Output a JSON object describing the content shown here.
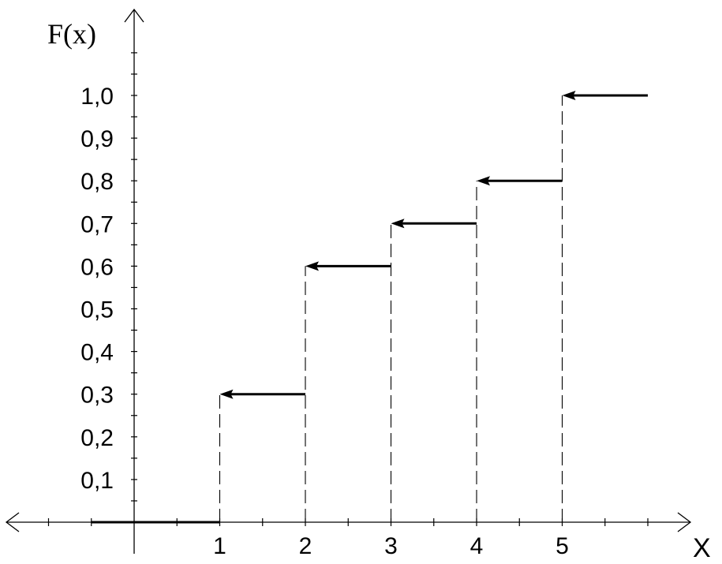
{
  "chart_data": {
    "type": "line",
    "title": "",
    "xlabel": "X",
    "ylabel": "F(x)",
    "xlim": [
      -1.5,
      6.5
    ],
    "ylim": [
      0,
      1.1
    ],
    "x_ticks": [
      1,
      2,
      3,
      4,
      5
    ],
    "x_tick_labels": [
      "1",
      "2",
      "3",
      "4",
      "5"
    ],
    "y_ticks": [
      0.1,
      0.2,
      0.3,
      0.4,
      0.5,
      0.6,
      0.7,
      0.8,
      0.9,
      1.0
    ],
    "y_tick_labels": [
      "0,1",
      "0,2",
      "0,3",
      "0,4",
      "0,5",
      "0,6",
      "0,7",
      "0,8",
      "0,9",
      "1,0"
    ],
    "steps": [
      {
        "x_start": -0.5,
        "x_end": 1,
        "y": 0.0
      },
      {
        "x_start": 1,
        "x_end": 2,
        "y": 0.3
      },
      {
        "x_start": 2,
        "x_end": 3,
        "y": 0.6
      },
      {
        "x_start": 3,
        "x_end": 4,
        "y": 0.7
      },
      {
        "x_start": 4,
        "x_end": 5,
        "y": 0.8
      },
      {
        "x_start": 5,
        "x_end": 6,
        "y": 1.0
      }
    ],
    "dashed_jumps": [
      {
        "x": 1,
        "y": 0.3
      },
      {
        "x": 2,
        "y": 0.6
      },
      {
        "x": 3,
        "y": 0.7
      },
      {
        "x": 4,
        "y": 0.8
      },
      {
        "x": 5,
        "y": 1.0
      }
    ],
    "grid": false,
    "line_color": "#000000"
  }
}
